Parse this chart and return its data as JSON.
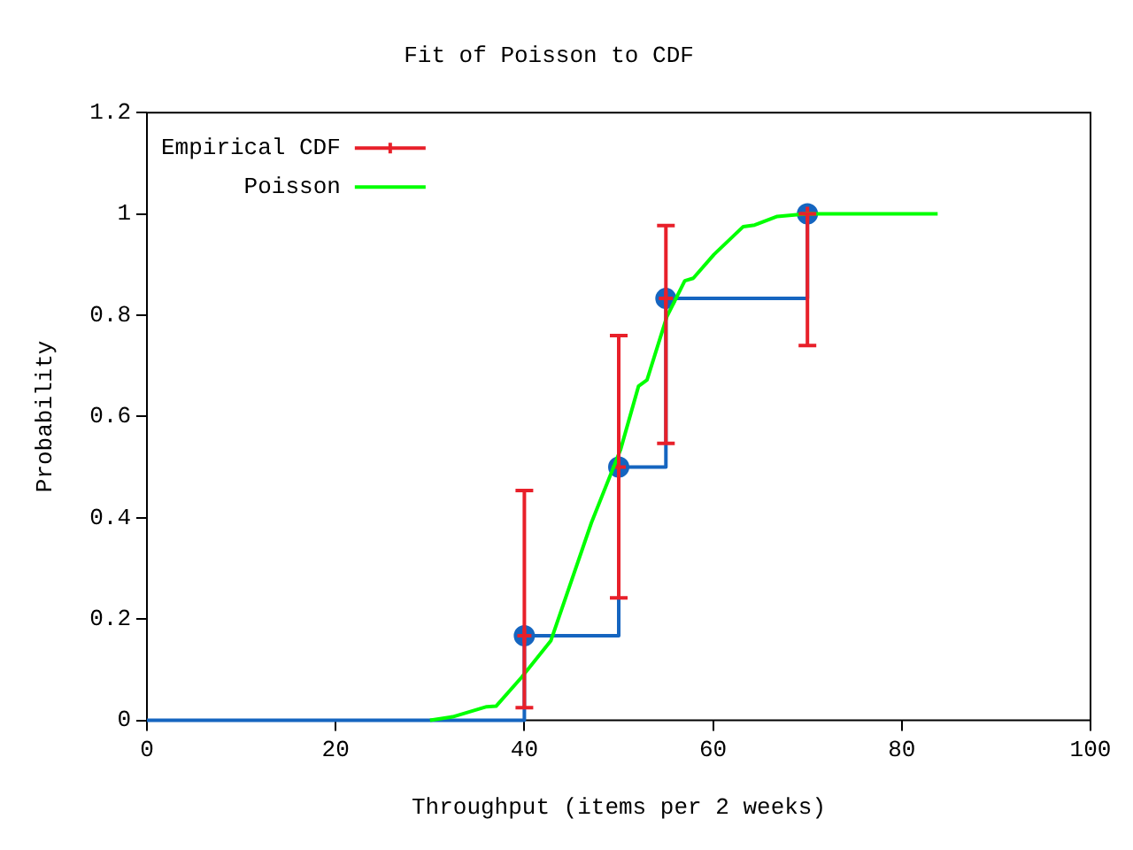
{
  "chart_data": {
    "type": "line",
    "title": "Fit of Poisson to CDF",
    "xlabel": "Throughput (items per 2 weeks)",
    "ylabel": "Probability",
    "xlim": [
      0,
      100
    ],
    "xticks": [
      0,
      20,
      40,
      60,
      80,
      100
    ],
    "ylim": [
      0,
      1.2
    ],
    "yticks": [
      0,
      0.2,
      0.4,
      0.6,
      0.8,
      1,
      1.2
    ],
    "grid": false,
    "legend": "top left",
    "series": [
      {
        "type": "step",
        "color": "#1565c0",
        "marker": "none",
        "x": [
          0,
          40,
          50,
          55,
          70
        ],
        "values": [
          0,
          0.167,
          0.5,
          0.833,
          1
        ]
      },
      {
        "type": "scatter",
        "color": "#1565c0",
        "marker": "circle",
        "x": [
          40,
          50,
          55,
          70
        ],
        "values": [
          0.167,
          0.5,
          0.833,
          1
        ]
      },
      {
        "type": "scatter",
        "name": "Empirical CDF",
        "color": "#e8202a",
        "marker": "cross",
        "x": [
          40,
          50,
          55,
          70
        ],
        "values": [
          0.167,
          0.5,
          0.833,
          1
        ],
        "errors": [
          [
            0.025,
            0.454
          ],
          [
            0.242,
            0.76
          ],
          [
            0.547,
            0.977
          ],
          [
            0.74,
            1
          ]
        ]
      },
      {
        "type": "line",
        "name": "Poisson",
        "color": "#00ff00",
        "marker": "none",
        "x": [
          30,
          32.4,
          36,
          37,
          39.7,
          42.8,
          47.1,
          50.2,
          52.1,
          53,
          55.1,
          57,
          57.9,
          60.1,
          63.2,
          64.4,
          66.8,
          69.9,
          83.8
        ],
        "values": [
          0,
          0.007,
          0.027,
          0.028,
          0.085,
          0.157,
          0.39,
          0.535,
          0.66,
          0.672,
          0.797,
          0.868,
          0.873,
          0.92,
          0.975,
          0.978,
          0.995,
          1,
          1
        ]
      }
    ]
  }
}
